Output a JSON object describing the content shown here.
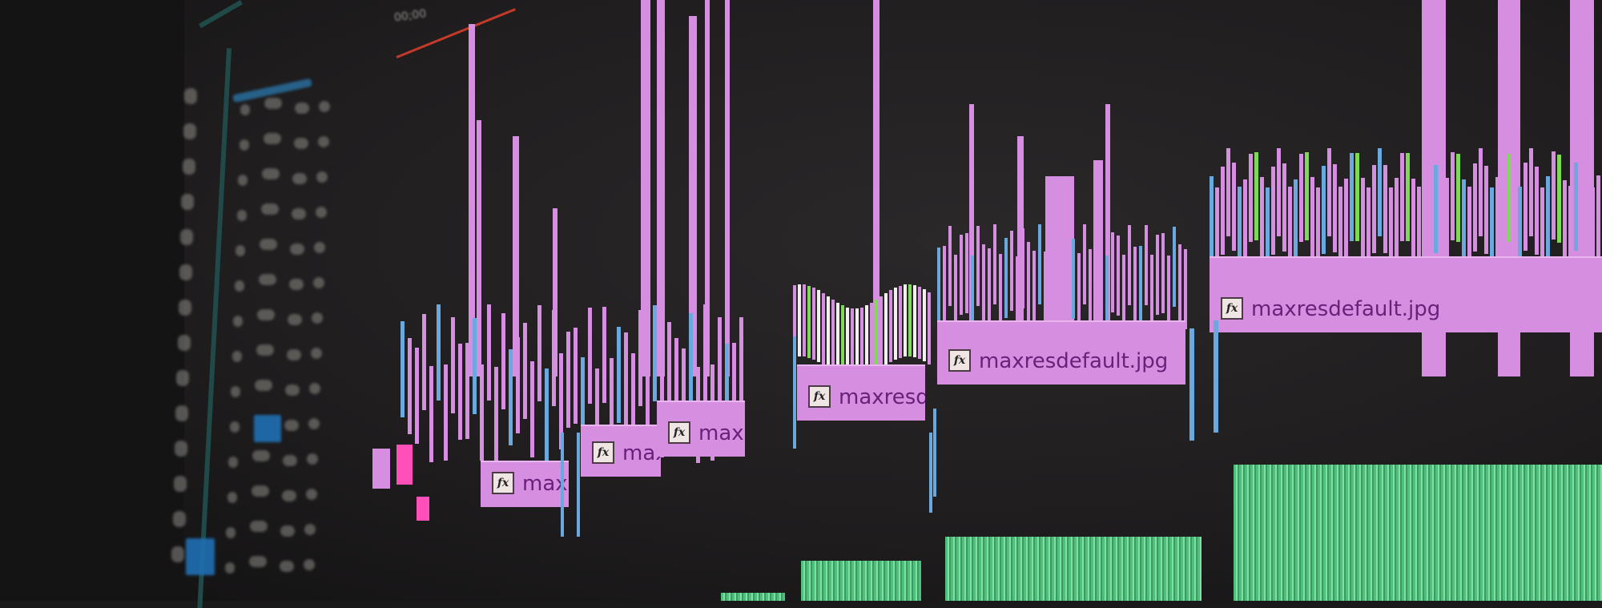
{
  "app": {
    "type": "video-editor-timeline"
  },
  "timeline": {
    "timecode": "00;00",
    "clips": [
      {
        "name": "max",
        "icon": "fx-icon"
      },
      {
        "name": "maxt",
        "icon": "fx-icon"
      },
      {
        "name": "maxre",
        "icon": "fx-icon"
      },
      {
        "name": "maxresde",
        "icon": "fx-icon"
      },
      {
        "name": "maxresdefault.jpg",
        "icon": "fx-icon"
      },
      {
        "name": "maxresdefault.jpg",
        "icon": "fx-icon"
      }
    ]
  },
  "colors": {
    "background": "#1e1c1d",
    "video_clip": "#d58ee0",
    "clip_label": "#6a1f7a",
    "audio_clip": "#4fbf7e",
    "marker_blue": "#6aa8e0",
    "marker_green": "#7ed957",
    "playhead": "#c23a2a",
    "panel_border": "#1f4a48",
    "selected_track": "#1f6fb3"
  }
}
